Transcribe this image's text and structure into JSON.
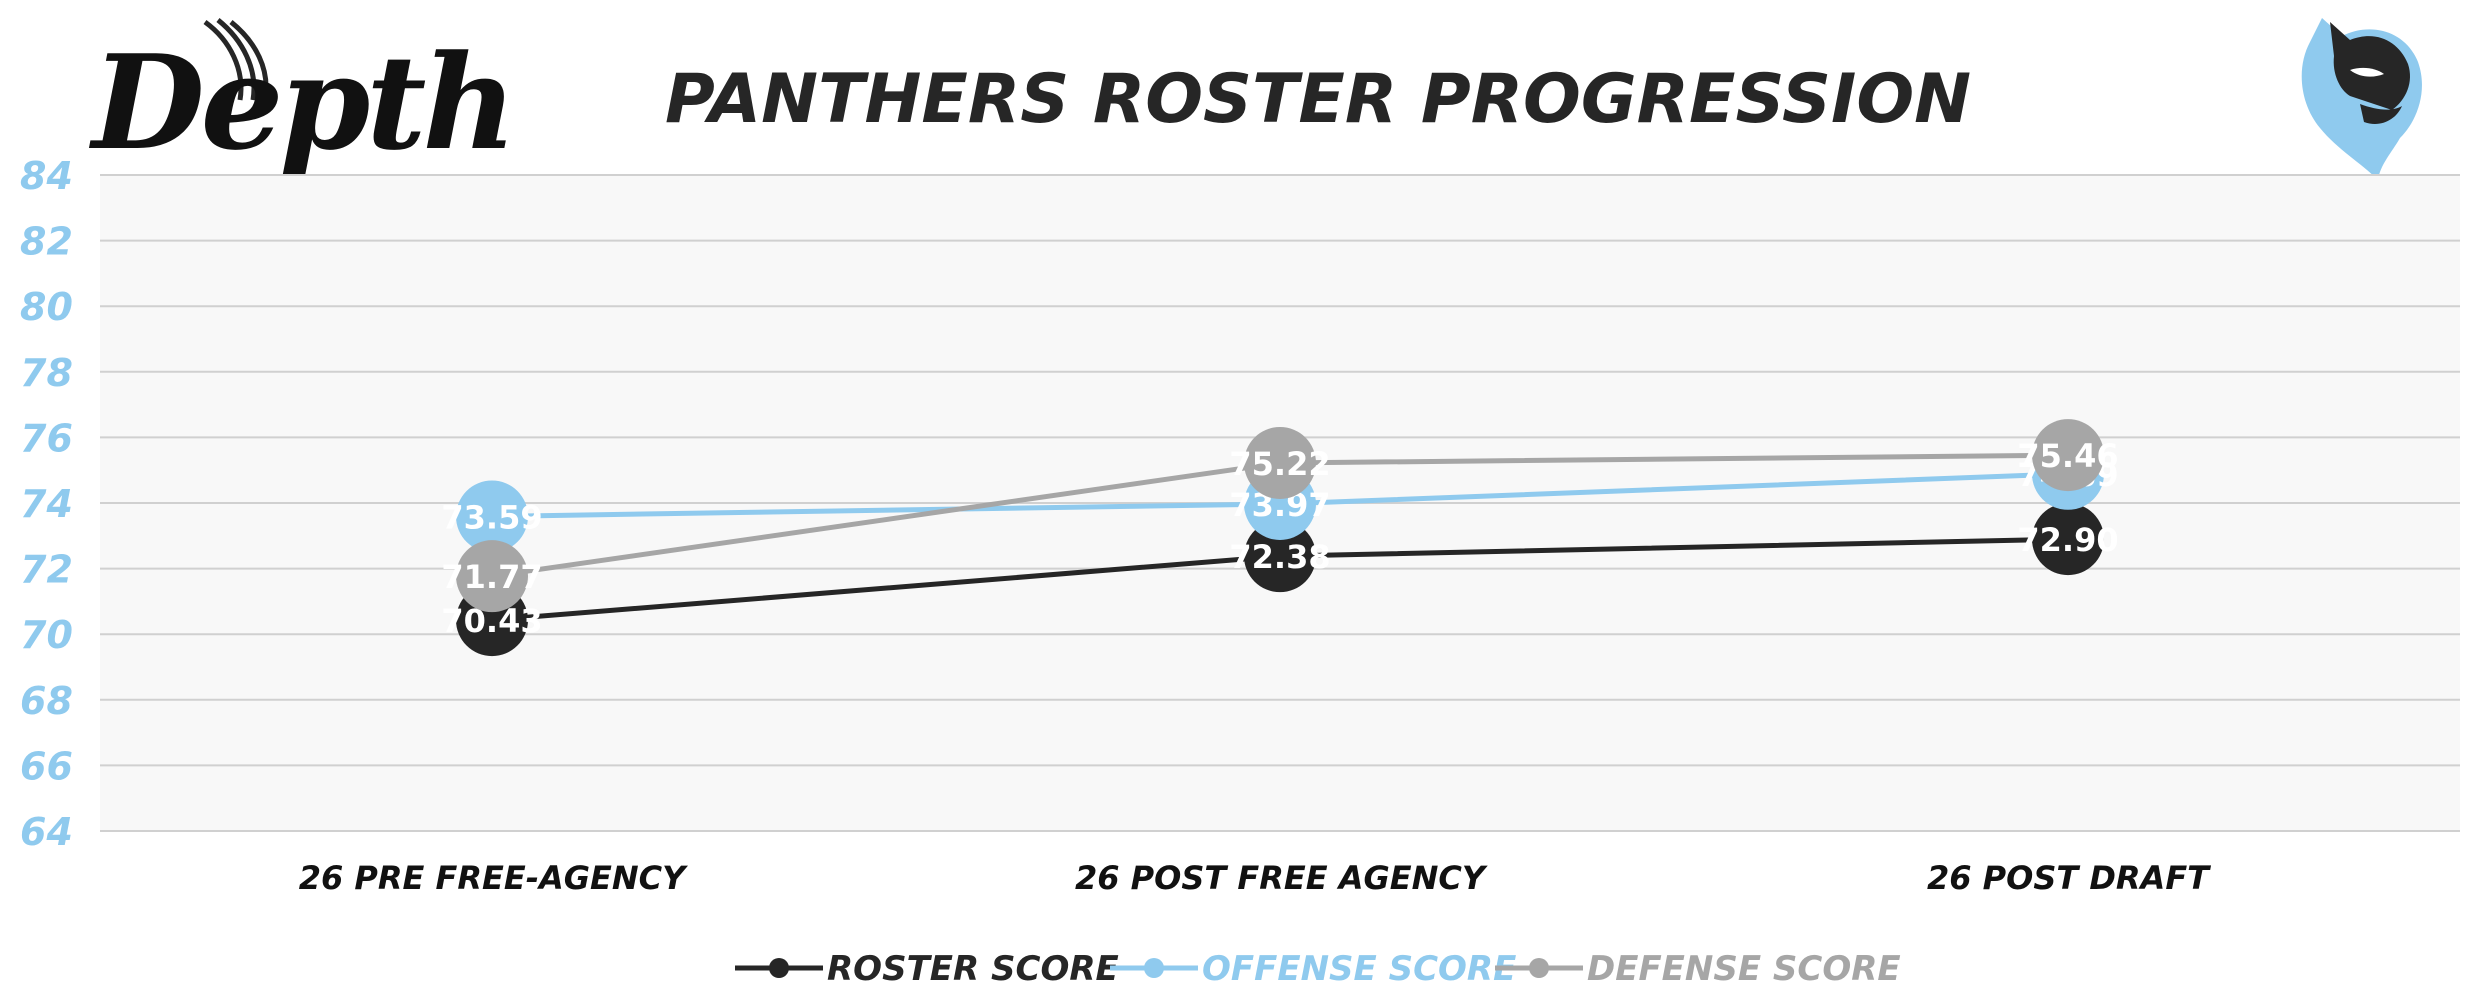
{
  "header": {
    "logo_text": "Depth",
    "title": "PANTHERS ROSTER PROGRESSION",
    "team_logo_icon": "panther-head-icon"
  },
  "colors": {
    "roster": "#262626",
    "offense": "#8fcaee",
    "defense": "#a6a6a6",
    "axis_text": "#8fcaee",
    "plot_bg": "#f8f8f8",
    "grid": "#d0d0d0",
    "title": "#262626"
  },
  "chart_data": {
    "type": "line",
    "title": "PANTHERS ROSTER PROGRESSION",
    "categories": [
      "26 PRE FREE-AGENCY",
      "26 POST FREE AGENCY",
      "26 POST DRAFT"
    ],
    "series": [
      {
        "name": "ROSTER SCORE",
        "values": [
          70.43,
          72.38,
          72.9
        ]
      },
      {
        "name": "OFFENSE SCORE",
        "values": [
          73.59,
          73.97,
          74.89
        ]
      },
      {
        "name": "DEFENSE SCORE",
        "values": [
          71.77,
          75.22,
          75.46
        ]
      }
    ],
    "data_labels": [
      [
        "70.43",
        "72.38",
        "72.90"
      ],
      [
        "73.59",
        "73.97",
        "74.89"
      ],
      [
        "71.77",
        "75.22",
        "75.46"
      ]
    ],
    "ylim": [
      64,
      84
    ],
    "yticks": [
      "64",
      "66",
      "68",
      "70",
      "72",
      "74",
      "76",
      "78",
      "80",
      "82",
      "84"
    ],
    "xlabel": "",
    "ylabel": "",
    "grid": true,
    "legend_position": "bottom"
  }
}
